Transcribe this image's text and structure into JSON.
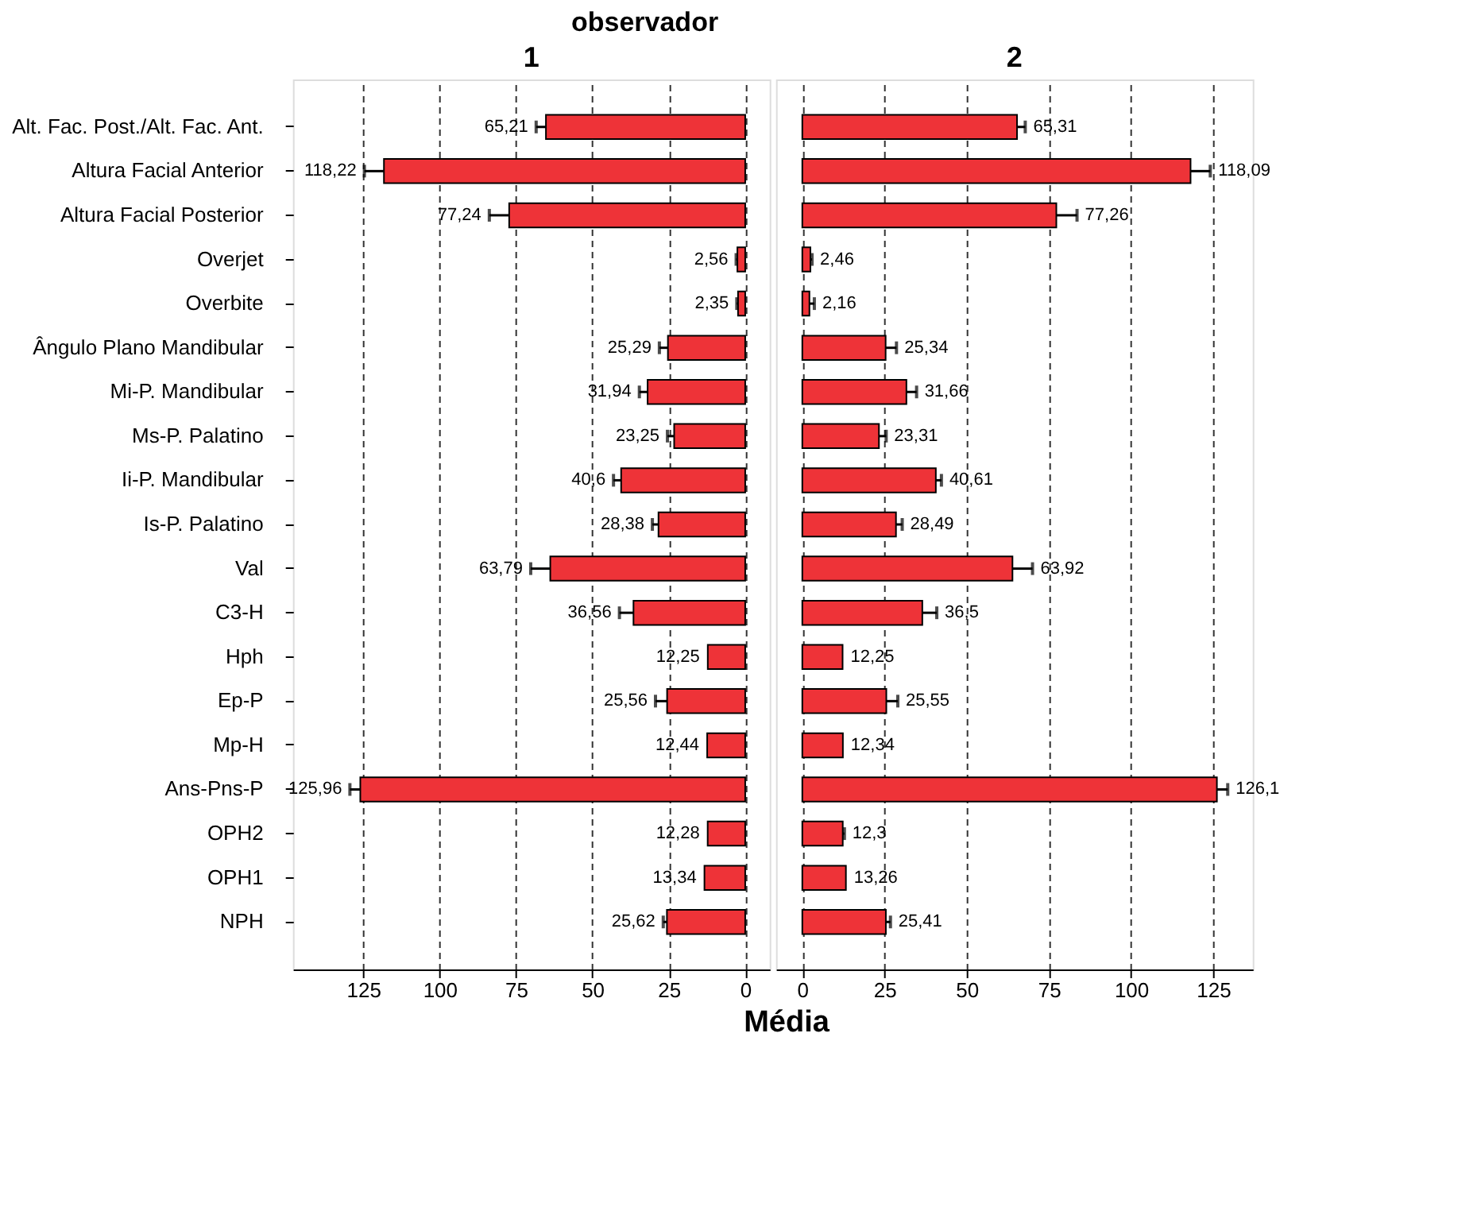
{
  "chart_data": [
    {
      "type": "bar",
      "orientation": "horizontal",
      "title": "1",
      "subtitle": "observador",
      "xlabel": "Média",
      "categories": [
        "Alt. Fac. Post./Alt. Fac. Ant.",
        "Altura Facial Anterior",
        "Altura Facial Posterior",
        "Overjet",
        "Overbite",
        "Ângulo Plano Mandibular",
        "Mi-P. Mandibular",
        "Ms-P. Palatino",
        "Ii-P. Mandibular",
        "Is-P. Palatino",
        "Val",
        "C3-H",
        "Hph",
        "Ep-P",
        "Mp-H",
        "Ans-Pns-P",
        "OPH2",
        "OPH1",
        "NPH"
      ],
      "values": [
        65.21,
        118.22,
        77.24,
        2.56,
        2.35,
        25.29,
        31.94,
        23.25,
        40.6,
        28.38,
        63.79,
        36.56,
        12.25,
        25.56,
        12.44,
        125.96,
        12.28,
        13.34,
        25.62
      ],
      "value_labels": [
        "65,21",
        "118,22",
        "77,24",
        "2,56",
        "2,35",
        "25,29",
        "31,94",
        "23,25",
        "40,6",
        "28,38",
        "63,79",
        "36,56",
        "12,25",
        "25,56",
        "12,44",
        "125,96",
        "12,28",
        "13,34",
        "25,62"
      ],
      "errors": [
        3.2,
        6.4,
        6.5,
        0.4,
        0.4,
        2.8,
        2.7,
        2.2,
        2.5,
        2,
        6.4,
        4.6,
        null,
        3.8,
        null,
        3.4,
        null,
        null,
        1.2
      ],
      "color": "#ee3338",
      "xlim": [
        148,
        -8
      ],
      "xticks": [
        125,
        100,
        75,
        50,
        25,
        0
      ],
      "grid": "x"
    },
    {
      "type": "bar",
      "orientation": "horizontal",
      "title": "2",
      "tick_labels": "x",
      "categories": [
        "Alt. Fac. Post./Alt. Fac. Ant.",
        "Altura Facial Anterior",
        "Altura Facial Posterior",
        "Overjet",
        "Overbite",
        "Ângulo Plano Mandibular",
        "Mi-P. Mandibular",
        "Ms-P. Palatino",
        "Ii-P. Mandibular",
        "Is-P. Palatino",
        "Val",
        "C3-H",
        "Hph",
        "Ep-P",
        "Mp-H",
        "Ans-Pns-P",
        "OPH2",
        "OPH1",
        "NPH"
      ],
      "values": [
        65.31,
        118.09,
        77.26,
        2.46,
        2.16,
        25.34,
        31.66,
        23.31,
        40.61,
        28.49,
        63.92,
        36.5,
        12.25,
        25.55,
        12.34,
        126.1,
        12.3,
        13.26,
        25.41
      ],
      "value_labels": [
        "65,31",
        "118,09",
        "77,26",
        "2,46",
        "2,16",
        "25,34",
        "31,66",
        "23,31",
        "40,61",
        "28,49",
        "63,92",
        "36,5",
        "12,25",
        "25,55",
        "12,34",
        "126,1",
        "12,3",
        "13,26",
        "25,41"
      ],
      "errors": [
        2.5,
        6,
        6.3,
        0.5,
        1.5,
        3.3,
        3.1,
        2.2,
        1.7,
        1.9,
        6.1,
        4.4,
        null,
        3.5,
        null,
        3.3,
        0.5,
        null,
        1.4
      ],
      "color": "#ee3338",
      "xlim": [
        -8,
        137
      ],
      "xticks": [
        0,
        25,
        50,
        75,
        100,
        125
      ],
      "grid": "x"
    }
  ]
}
